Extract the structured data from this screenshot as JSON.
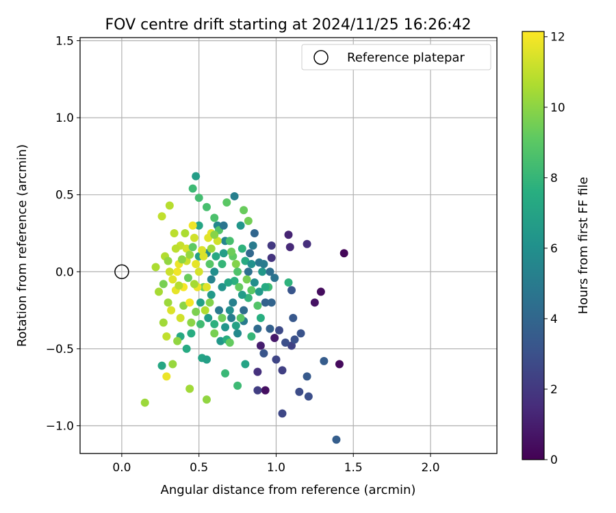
{
  "chart_data": {
    "type": "scatter",
    "title": "FOV centre drift starting at 2024/11/25 16:26:42",
    "xlabel": "Angular distance from reference (arcmin)",
    "ylabel": "Rotation from reference (arcmin)",
    "xlim": [
      -0.27,
      2.43
    ],
    "ylim": [
      -1.18,
      1.52
    ],
    "x_ticks": [
      0.0,
      0.5,
      1.0,
      1.5,
      2.0
    ],
    "y_ticks": [
      -1.0,
      -0.5,
      0.0,
      0.5,
      1.0,
      1.5
    ],
    "x_tick_labels": [
      "0.0",
      "0.5",
      "1.0",
      "1.5",
      "2.0"
    ],
    "y_tick_labels": [
      "−1.0",
      "−0.5",
      "0.0",
      "0.5",
      "1.0",
      "1.5"
    ],
    "grid": true,
    "legend": {
      "placement": "top-right",
      "entries": [
        {
          "label": "Reference platepar",
          "marker": "open-circle"
        }
      ]
    },
    "reference_point": {
      "x": 0.0,
      "y": 0.0
    },
    "colorbar": {
      "label": "Hours from first FF file",
      "range": [
        0,
        12.15
      ],
      "ticks": [
        0,
        2,
        4,
        6,
        8,
        10,
        12
      ],
      "tick_labels": [
        "0",
        "2",
        "4",
        "6",
        "8",
        "10",
        "12"
      ],
      "colormap": "viridis"
    },
    "series": [
      {
        "columns": [
          "x",
          "y",
          "hours"
        ],
        "points": [
          [
            1.44,
            0.12,
            0.2
          ],
          [
            1.41,
            -0.6,
            0.3
          ],
          [
            1.29,
            -0.13,
            0.4
          ],
          [
            1.25,
            -0.2,
            0.6
          ],
          [
            0.93,
            -0.77,
            0.5
          ],
          [
            0.99,
            -0.43,
            0.8
          ],
          [
            0.9,
            -0.48,
            1.0
          ],
          [
            1.08,
            0.24,
            1.2
          ],
          [
            1.09,
            0.16,
            1.4
          ],
          [
            1.2,
            0.18,
            1.6
          ],
          [
            0.97,
            0.09,
            1.8
          ],
          [
            0.97,
            0.17,
            2.0
          ],
          [
            0.88,
            -0.65,
            1.7
          ],
          [
            0.88,
            -0.77,
            2.2
          ],
          [
            1.04,
            -0.64,
            2.3
          ],
          [
            1.04,
            -0.92,
            2.6
          ],
          [
            1.1,
            -0.48,
            2.4
          ],
          [
            1.15,
            -0.78,
            2.8
          ],
          [
            1.21,
            -0.81,
            2.9
          ],
          [
            1.0,
            -0.57,
            2.5
          ],
          [
            1.02,
            -0.38,
            2.7
          ],
          [
            1.12,
            -0.44,
            3.0
          ],
          [
            1.16,
            -0.4,
            3.1
          ],
          [
            1.1,
            -0.12,
            3.2
          ],
          [
            1.11,
            -0.3,
            3.3
          ],
          [
            1.2,
            -0.68,
            3.4
          ],
          [
            1.31,
            -0.58,
            3.5
          ],
          [
            1.39,
            -1.09,
            3.6
          ],
          [
            0.96,
            -0.37,
            3.7
          ],
          [
            0.92,
            -0.53,
            3.2
          ],
          [
            0.93,
            -0.2,
            3.8
          ],
          [
            0.86,
            0.25,
            4.0
          ],
          [
            0.88,
            -0.37,
            4.2
          ],
          [
            1.06,
            -0.46,
            2.9
          ],
          [
            0.97,
            -0.2,
            3.9
          ],
          [
            0.82,
            0.0,
            4.5
          ],
          [
            0.89,
            0.06,
            4.8
          ],
          [
            0.85,
            0.17,
            5.0
          ],
          [
            0.79,
            -0.32,
            5.0
          ],
          [
            0.73,
            0.49,
            5.2
          ],
          [
            0.67,
            0.2,
            5.5
          ],
          [
            0.62,
            0.3,
            5.6
          ],
          [
            0.55,
            0.12,
            5.8
          ],
          [
            0.6,
            0.0,
            6.0
          ],
          [
            0.65,
            -0.1,
            6.2
          ],
          [
            0.7,
            -0.25,
            6.0
          ],
          [
            0.75,
            -0.4,
            5.7
          ],
          [
            0.64,
            -0.45,
            6.4
          ],
          [
            0.58,
            -0.15,
            6.5
          ],
          [
            0.56,
            -0.3,
            6.6
          ],
          [
            0.51,
            -0.2,
            6.8
          ],
          [
            0.5,
            0.1,
            6.9
          ],
          [
            0.48,
            0.62,
            6.7
          ],
          [
            0.5,
            0.3,
            7.1
          ],
          [
            0.52,
            -0.56,
            7.0
          ],
          [
            0.55,
            -0.57,
            6.8
          ],
          [
            0.26,
            -0.61,
            7.2
          ],
          [
            0.38,
            -0.42,
            7.3
          ],
          [
            0.42,
            -0.5,
            7.4
          ],
          [
            0.45,
            -0.4,
            7.5
          ],
          [
            0.68,
            -0.44,
            7.6
          ],
          [
            0.73,
            -0.06,
            7.7
          ],
          [
            0.78,
            0.15,
            7.8
          ],
          [
            0.82,
            -0.17,
            7.9
          ],
          [
            0.84,
            -0.42,
            8.0
          ],
          [
            0.67,
            -0.66,
            8.1
          ],
          [
            0.75,
            -0.74,
            8.2
          ],
          [
            0.8,
            -0.6,
            7.0
          ],
          [
            1.08,
            -0.07,
            7.8
          ],
          [
            0.46,
            0.54,
            8.2
          ],
          [
            0.5,
            0.48,
            8.4
          ],
          [
            0.55,
            0.42,
            8.5
          ],
          [
            0.6,
            0.35,
            8.6
          ],
          [
            0.63,
            0.27,
            8.8
          ],
          [
            0.68,
            0.45,
            9.0
          ],
          [
            0.72,
            0.1,
            9.1
          ],
          [
            0.76,
            -0.1,
            9.2
          ],
          [
            0.79,
            0.4,
            9.3
          ],
          [
            0.82,
            0.33,
            9.5
          ],
          [
            0.77,
            -0.3,
            9.0
          ],
          [
            0.7,
            -0.46,
            9.2
          ],
          [
            0.65,
            -0.3,
            9.4
          ],
          [
            0.6,
            -0.4,
            9.6
          ],
          [
            0.57,
            -0.2,
            9.8
          ],
          [
            0.53,
            -0.1,
            9.5
          ],
          [
            0.48,
            -0.26,
            9.7
          ],
          [
            0.45,
            -0.33,
            10.0
          ],
          [
            0.4,
            -0.22,
            10.0
          ],
          [
            0.36,
            -0.45,
            10.1
          ],
          [
            0.33,
            -0.6,
            10.2
          ],
          [
            0.3,
            -0.2,
            10.3
          ],
          [
            0.27,
            -0.33,
            10.4
          ],
          [
            0.24,
            -0.13,
            10.5
          ],
          [
            0.22,
            0.03,
            10.6
          ],
          [
            0.28,
            0.1,
            10.7
          ],
          [
            0.31,
            0.43,
            10.8
          ],
          [
            0.26,
            0.36,
            11.0
          ],
          [
            0.34,
            0.25,
            10.9
          ],
          [
            0.38,
            0.17,
            11.1
          ],
          [
            0.42,
            0.07,
            11.2
          ],
          [
            0.47,
            0.22,
            11.3
          ],
          [
            0.5,
            0.0,
            11.4
          ],
          [
            0.53,
            0.1,
            11.5
          ],
          [
            0.56,
            0.22,
            11.6
          ],
          [
            0.44,
            -0.76,
            10.4
          ],
          [
            0.55,
            -0.83,
            10.1
          ],
          [
            0.15,
            -0.85,
            10.3
          ],
          [
            0.29,
            -0.68,
            11.8
          ],
          [
            0.29,
            -0.42,
            11.0
          ],
          [
            0.36,
            0.0,
            11.9
          ],
          [
            0.4,
            -0.1,
            12.0
          ],
          [
            0.44,
            -0.2,
            12.0
          ],
          [
            0.46,
            0.3,
            11.9
          ],
          [
            0.49,
            -0.1,
            11.8
          ],
          [
            0.55,
            -0.1,
            11.6
          ],
          [
            0.58,
            0.25,
            11.7
          ],
          [
            0.62,
            0.2,
            11.3
          ],
          [
            0.52,
            0.14,
            11.5
          ],
          [
            0.48,
            0.05,
            11.7
          ],
          [
            0.42,
            0.15,
            11.4
          ],
          [
            0.37,
            0.05,
            11.8
          ],
          [
            0.33,
            -0.05,
            11.6
          ],
          [
            0.31,
            0.0,
            11.2
          ],
          [
            0.38,
            -0.3,
            11.3
          ],
          [
            0.35,
            -0.12,
            11.7
          ],
          [
            0.32,
            -0.25,
            11.5
          ],
          [
            0.65,
            0.05,
            8.0
          ],
          [
            0.7,
            0.2,
            8.5
          ],
          [
            0.74,
            0.05,
            9.8
          ],
          [
            0.81,
            -0.05,
            9.6
          ],
          [
            0.84,
            -0.12,
            9.0
          ],
          [
            0.88,
            -0.22,
            8.8
          ],
          [
            0.9,
            -0.3,
            7.6
          ],
          [
            0.95,
            -0.1,
            8.2
          ],
          [
            0.91,
            0.0,
            6.4
          ],
          [
            0.77,
            0.3,
            6.3
          ],
          [
            0.63,
            -0.25,
            4.9
          ],
          [
            0.58,
            -0.05,
            5.4
          ],
          [
            0.72,
            -0.2,
            5.3
          ],
          [
            0.66,
            0.12,
            6.7
          ],
          [
            0.61,
            0.1,
            7.3
          ],
          [
            0.57,
            0.05,
            8.9
          ],
          [
            0.69,
            -0.07,
            7.1
          ],
          [
            0.74,
            -0.35,
            6.9
          ],
          [
            0.86,
            -0.07,
            5.9
          ],
          [
            0.8,
            0.07,
            7.4
          ],
          [
            0.84,
            0.05,
            6.1
          ],
          [
            0.89,
            -0.13,
            6.5
          ],
          [
            0.93,
            -0.1,
            7.4
          ],
          [
            0.99,
            -0.04,
            4.6
          ],
          [
            0.96,
            0.0,
            4.4
          ],
          [
            0.92,
            0.05,
            5.0
          ],
          [
            0.79,
            -0.25,
            4.3
          ],
          [
            0.66,
            0.3,
            4.7
          ],
          [
            0.6,
            0.24,
            9.9
          ],
          [
            0.54,
            -0.25,
            10.7
          ],
          [
            0.47,
            -0.08,
            10.5
          ],
          [
            0.44,
            0.11,
            10.2
          ],
          [
            0.41,
            0.25,
            10.6
          ],
          [
            0.37,
            -0.09,
            10.8
          ],
          [
            0.39,
            0.08,
            10.0
          ],
          [
            0.43,
            -0.04,
            9.3
          ],
          [
            0.51,
            -0.34,
            8.3
          ],
          [
            0.6,
            -0.34,
            7.7
          ],
          [
            0.67,
            -0.36,
            6.3
          ],
          [
            0.71,
            -0.3,
            5.1
          ],
          [
            0.78,
            -0.15,
            6.6
          ],
          [
            0.75,
            0.0,
            8.7
          ],
          [
            0.83,
            0.12,
            4.1
          ],
          [
            0.71,
            0.13,
            9.4
          ],
          [
            0.58,
            0.15,
            10.3
          ],
          [
            0.46,
            0.16,
            9.1
          ],
          [
            0.35,
            0.15,
            10.9
          ],
          [
            0.3,
            0.07,
            10.1
          ],
          [
            0.27,
            -0.08,
            9.6
          ]
        ]
      }
    ]
  }
}
